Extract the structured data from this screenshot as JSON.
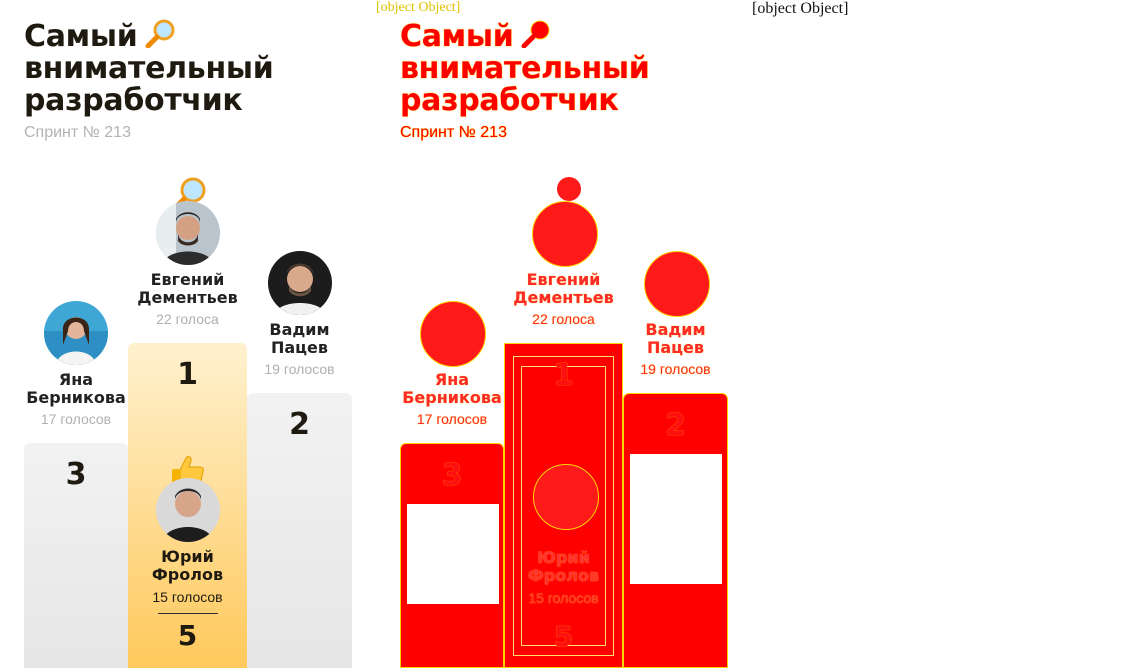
{
  "header": {
    "title_lines": [
      "Самый",
      "внимательный",
      "разработчик"
    ],
    "subtitle": "Спринт № 213",
    "title_emoji": "magnifier-icon"
  },
  "podium": {
    "first": {
      "place": "1",
      "name_lines": [
        "Евгений",
        "Дементьев"
      ],
      "votes": "22 голоса",
      "badge": "magnifier-icon"
    },
    "second": {
      "place": "2",
      "name_lines": [
        "Вадим",
        "Пацев"
      ],
      "votes": "19 голосов"
    },
    "third": {
      "place": "3",
      "name_lines": [
        "Яна",
        "Берникова"
      ],
      "votes": "17 голосов"
    },
    "extra": {
      "place": "5",
      "name_lines": [
        "Юрий",
        "Фролов"
      ],
      "votes": "15 голосов",
      "badge": "thumbs-up-icon"
    }
  },
  "debug": {
    "label": "[object Object]",
    "raw_text": "[object Object]"
  },
  "colors": {
    "gold": "#ffc95c",
    "gray": "#ececec",
    "debug_red": "#ff0000",
    "debug_yellow": "#ffd400"
  }
}
